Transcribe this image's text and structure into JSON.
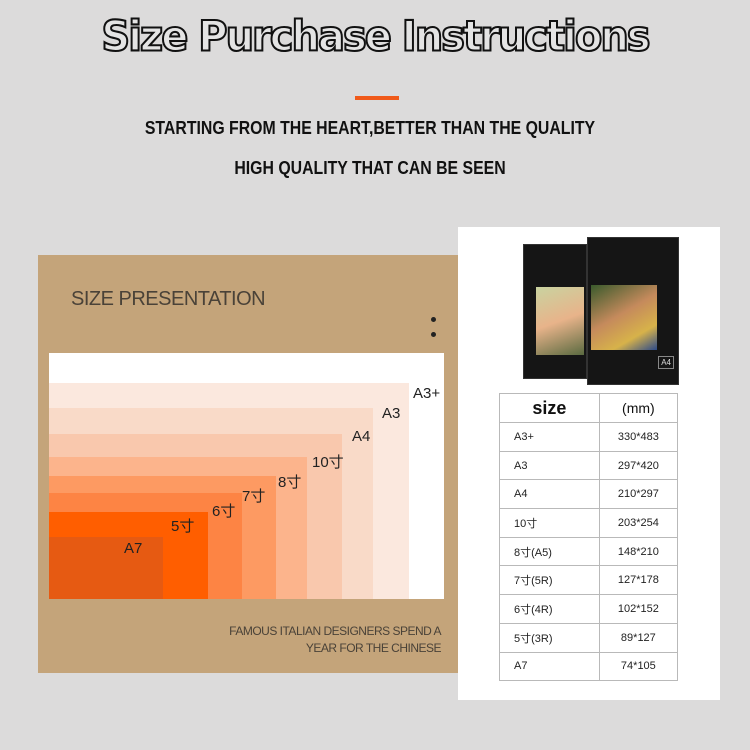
{
  "header": {
    "title": "Size Purchase Instructions",
    "tagline1": "STARTING FROM THE HEART,BETTER THAN THE QUALITY",
    "tagline2": "HIGH QUALITY THAT CAN BE SEEN",
    "accent": "#f05a1a"
  },
  "presentation": {
    "title": "SIZE PRESENTATION",
    "footer1": "FAMOUS ITALIAN DESIGNERS SPEND A",
    "footer2": "YEAR FOR THE CHINESE",
    "labels": [
      "A3+",
      "A3",
      "A4",
      "10寸",
      "8寸",
      "7寸",
      "6寸",
      "5寸",
      "A7"
    ],
    "colors": [
      "#fbe8de",
      "#f9dac8",
      "#f9c8ad",
      "#fcb48c",
      "#fd9a62",
      "#fd8444",
      "#ff5e00",
      "#e65a12"
    ]
  },
  "size_table": {
    "headers": [
      "size",
      "(mm)"
    ],
    "rows": [
      [
        "A3+",
        "330*483"
      ],
      [
        "A3",
        "297*420"
      ],
      [
        "A4",
        "210*297"
      ],
      [
        "10寸",
        "203*254"
      ],
      [
        "8寸(A5)",
        "148*210"
      ],
      [
        "7寸(5R)",
        "127*178"
      ],
      [
        "6寸(4R)",
        "102*152"
      ],
      [
        "5寸(3R)",
        "89*127"
      ],
      [
        "A7",
        "74*105"
      ]
    ]
  },
  "product": {
    "box_label": "A4"
  }
}
